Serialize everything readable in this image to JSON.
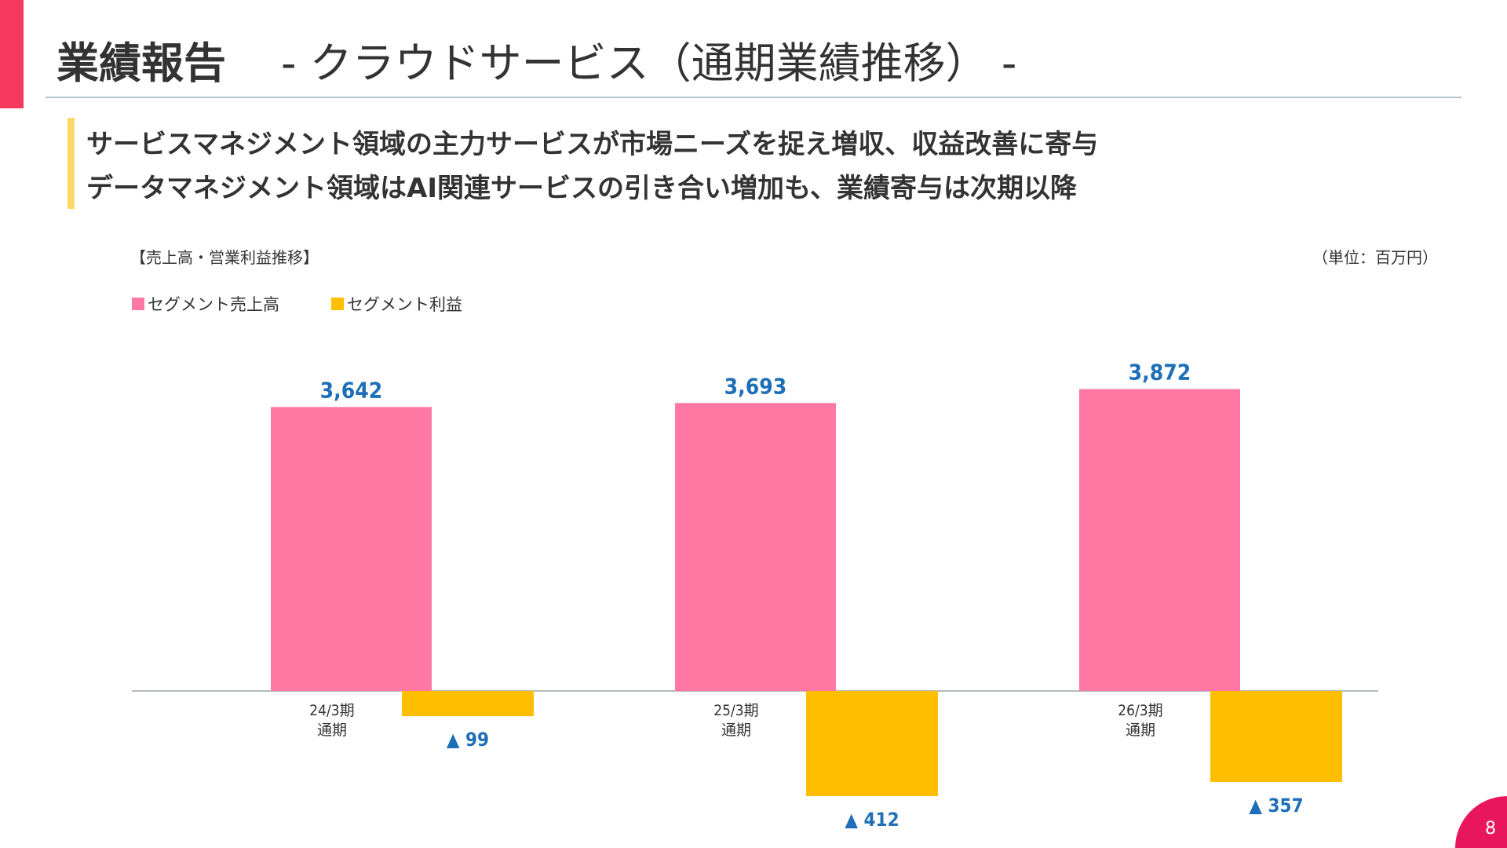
{
  "header": {
    "title": "業績報告",
    "subtitle": "- クラウドサービス（通期業績推移） -"
  },
  "headlines": [
    "サービスマネジメント領域の主力サービスが市場ニーズを捉え増収、収益改善に寄与",
    "データマネジメント領域はAI関連サービスの引き合い増加も、業績寄与は次期以降"
  ],
  "chart_title": "【売上高・営業利益推移】",
  "unit_label": "（単位：百万円）",
  "page_number": "8",
  "colors": {
    "accent": "#f4385e",
    "sales": "#ff78a3",
    "profit": "#ffbf00",
    "value_label": "#1e6fb8",
    "highlight": "#fdd866"
  },
  "chart_data": {
    "type": "bar",
    "categories": [
      {
        "line1": "24/3期",
        "line2": "通期"
      },
      {
        "line1": "25/3期",
        "line2": "通期"
      },
      {
        "line1": "26/3期",
        "line2": "通期"
      }
    ],
    "series": [
      {
        "name": "セグメント売上高",
        "values": [
          3642,
          3693,
          3872
        ],
        "labels": [
          "3,642",
          "3,693",
          "3,872"
        ]
      },
      {
        "name": "セグメント利益",
        "values": [
          -99,
          -412,
          -357
        ],
        "labels": [
          "▲ 99",
          "▲ 412",
          "▲ 357"
        ]
      }
    ],
    "legend_position": "top-left",
    "grid": false
  }
}
